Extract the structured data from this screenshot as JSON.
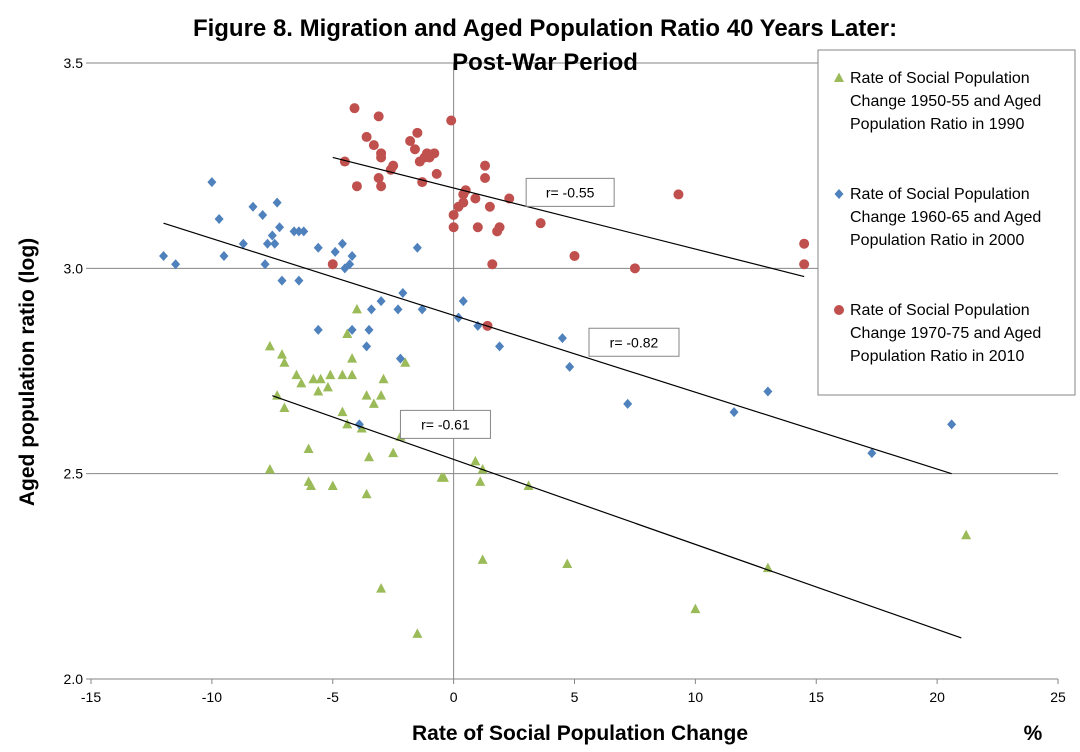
{
  "chart_data": {
    "type": "scatter",
    "title": "Figure 8. Migration and Aged Population Ratio 40 Years Later: Post-War Period",
    "title_lines": [
      "Figure 8. Migration and Aged Population Ratio 40 Years Later:",
      "Post-War Period"
    ],
    "xlabel": "Rate of Social Population Change",
    "x_unit": "%",
    "ylabel": "Aged population ratio (log)",
    "xlim": [
      -15,
      25
    ],
    "ylim": [
      2.0,
      3.5
    ],
    "x_ticks": [
      -15,
      -10,
      -5,
      0,
      5,
      10,
      15,
      20,
      25
    ],
    "y_ticks": [
      2.0,
      2.5,
      3.0,
      3.5
    ],
    "y_tick_labels": [
      "2.0",
      "2.5",
      "3.0",
      "3.5"
    ],
    "grid": "horizontal",
    "legend_position": "top-right",
    "colors": {
      "green": "#9BBB59",
      "blue": "#4F81BD",
      "red": "#C0504D",
      "axis": "#868686",
      "trend": "#000000"
    },
    "series": [
      {
        "name": "Rate of Social Population Change 1950-55 and Aged Population Ratio in 1990",
        "marker": "triangle",
        "color": "#9BBB59",
        "r_label": "r= -0.61",
        "trendline": {
          "x": [
            -7.5,
            21.0
          ],
          "y": [
            2.69,
            2.1
          ]
        },
        "points": [
          [
            -7.6,
            2.81
          ],
          [
            -7.3,
            2.69
          ],
          [
            -7.1,
            2.79
          ],
          [
            -7.0,
            2.77
          ],
          [
            -7.0,
            2.66
          ],
          [
            -6.5,
            2.74
          ],
          [
            -6.3,
            2.72
          ],
          [
            -5.8,
            2.73
          ],
          [
            -5.6,
            2.7
          ],
          [
            -5.5,
            2.73
          ],
          [
            -5.2,
            2.71
          ],
          [
            -5.1,
            2.74
          ],
          [
            -4.6,
            2.74
          ],
          [
            -4.4,
            2.62
          ],
          [
            -4.2,
            2.78
          ],
          [
            -4.2,
            2.74
          ],
          [
            -4.0,
            2.9
          ],
          [
            -3.8,
            2.61
          ],
          [
            -3.6,
            2.69
          ],
          [
            -3.5,
            2.54
          ],
          [
            -3.3,
            2.67
          ],
          [
            -3.0,
            2.69
          ],
          [
            -2.9,
            2.73
          ],
          [
            -2.5,
            2.55
          ],
          [
            -2.2,
            2.59
          ],
          [
            -2.0,
            2.77
          ],
          [
            -1.5,
            2.11
          ],
          [
            -0.5,
            2.49
          ],
          [
            -0.4,
            2.49
          ],
          [
            0.9,
            2.53
          ],
          [
            1.1,
            2.48
          ],
          [
            1.2,
            2.51
          ],
          [
            1.2,
            2.29
          ],
          [
            3.1,
            2.47
          ],
          [
            4.7,
            2.28
          ],
          [
            10.0,
            2.17
          ],
          [
            13.0,
            2.27
          ],
          [
            21.2,
            2.35
          ],
          [
            -7.6,
            2.51
          ],
          [
            -6.0,
            2.56
          ],
          [
            -6.0,
            2.48
          ],
          [
            -5.9,
            2.47
          ],
          [
            -5.0,
            2.47
          ],
          [
            -4.6,
            2.65
          ],
          [
            -4.4,
            2.84
          ],
          [
            -3.0,
            2.22
          ],
          [
            -3.6,
            2.45
          ]
        ]
      },
      {
        "name": "Rate of Social Population Change 1960-65 and Aged Population Ratio in 2000",
        "marker": "diamond",
        "color": "#4F81BD",
        "r_label": "r= -0.82",
        "trendline": {
          "x": [
            -12.0,
            20.6
          ],
          "y": [
            3.11,
            2.5
          ]
        },
        "points": [
          [
            -12.0,
            3.03
          ],
          [
            -11.5,
            3.01
          ],
          [
            -10.0,
            3.21
          ],
          [
            -9.7,
            3.12
          ],
          [
            -9.5,
            3.03
          ],
          [
            -8.7,
            3.06
          ],
          [
            -8.3,
            3.15
          ],
          [
            -7.9,
            3.13
          ],
          [
            -7.8,
            3.01
          ],
          [
            -7.7,
            3.06
          ],
          [
            -7.5,
            3.08
          ],
          [
            -7.4,
            3.06
          ],
          [
            -7.3,
            3.16
          ],
          [
            -7.2,
            3.1
          ],
          [
            -7.1,
            2.97
          ],
          [
            -6.6,
            3.09
          ],
          [
            -6.4,
            3.09
          ],
          [
            -6.4,
            2.97
          ],
          [
            -6.2,
            3.09
          ],
          [
            -5.6,
            3.05
          ],
          [
            -5.6,
            2.85
          ],
          [
            -4.9,
            3.04
          ],
          [
            -4.6,
            3.06
          ],
          [
            -4.5,
            3.0
          ],
          [
            -4.3,
            3.01
          ],
          [
            -4.2,
            3.03
          ],
          [
            -4.2,
            2.85
          ],
          [
            -3.9,
            2.62
          ],
          [
            -3.6,
            2.81
          ],
          [
            -3.5,
            2.85
          ],
          [
            -3.4,
            2.9
          ],
          [
            -3.0,
            2.92
          ],
          [
            -2.3,
            2.9
          ],
          [
            -2.2,
            2.78
          ],
          [
            -2.1,
            2.94
          ],
          [
            -1.5,
            3.05
          ],
          [
            -1.3,
            2.9
          ],
          [
            0.2,
            2.88
          ],
          [
            0.4,
            2.92
          ],
          [
            1.0,
            2.86
          ],
          [
            1.9,
            2.81
          ],
          [
            4.5,
            2.83
          ],
          [
            4.8,
            2.76
          ],
          [
            7.2,
            2.67
          ],
          [
            11.6,
            2.65
          ],
          [
            13.0,
            2.7
          ],
          [
            17.3,
            2.55
          ],
          [
            20.6,
            2.62
          ]
        ]
      },
      {
        "name": "Rate of Social Population Change 1970-75 and Aged Population Ratio in 2010",
        "marker": "circle",
        "color": "#C0504D",
        "r_label": "r= -0.55",
        "trendline": {
          "x": [
            -5.0,
            14.5
          ],
          "y": [
            3.27,
            2.98
          ]
        },
        "points": [
          [
            -5.0,
            3.01
          ],
          [
            -4.5,
            3.26
          ],
          [
            -4.1,
            3.39
          ],
          [
            -4.0,
            3.2
          ],
          [
            -3.6,
            3.32
          ],
          [
            -3.3,
            3.3
          ],
          [
            -3.1,
            3.37
          ],
          [
            -3.1,
            3.22
          ],
          [
            -3.0,
            3.2
          ],
          [
            -3.0,
            3.28
          ],
          [
            -3.0,
            3.27
          ],
          [
            -2.6,
            3.24
          ],
          [
            -2.5,
            3.25
          ],
          [
            -1.8,
            3.31
          ],
          [
            -1.6,
            3.29
          ],
          [
            -1.5,
            3.33
          ],
          [
            -1.4,
            3.26
          ],
          [
            -1.3,
            3.21
          ],
          [
            -1.2,
            3.27
          ],
          [
            -1.1,
            3.28
          ],
          [
            -1.0,
            3.27
          ],
          [
            -0.8,
            3.28
          ],
          [
            -0.7,
            3.23
          ],
          [
            -0.1,
            3.36
          ],
          [
            0.0,
            3.13
          ],
          [
            0.0,
            3.1
          ],
          [
            0.2,
            3.15
          ],
          [
            0.4,
            3.18
          ],
          [
            0.4,
            3.16
          ],
          [
            0.5,
            3.19
          ],
          [
            0.9,
            3.17
          ],
          [
            1.0,
            3.1
          ],
          [
            1.3,
            3.22
          ],
          [
            1.3,
            3.25
          ],
          [
            1.4,
            2.86
          ],
          [
            1.5,
            3.15
          ],
          [
            1.6,
            3.01
          ],
          [
            1.8,
            3.09
          ],
          [
            1.9,
            3.1
          ],
          [
            2.3,
            3.17
          ],
          [
            3.6,
            3.11
          ],
          [
            5.0,
            3.03
          ],
          [
            7.5,
            3.0
          ],
          [
            9.3,
            3.18
          ],
          [
            14.5,
            3.06
          ],
          [
            14.5,
            3.01
          ]
        ]
      }
    ]
  }
}
